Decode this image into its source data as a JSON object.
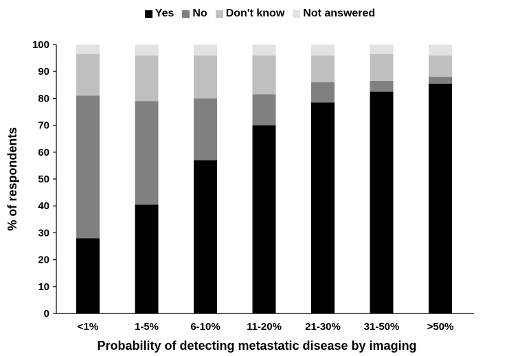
{
  "chart_data": {
    "type": "bar",
    "stacked": true,
    "title": "",
    "xlabel": "Probability of detecting metastatic disease by imaging",
    "ylabel": "% of respondents",
    "ylim": [
      0,
      100
    ],
    "yticks": [
      0,
      10,
      20,
      30,
      40,
      50,
      60,
      70,
      80,
      90,
      100
    ],
    "categories": [
      "<1%",
      "1-5%",
      "6-10%",
      "11-20%",
      "21-30%",
      "31-50%",
      ">50%"
    ],
    "legend_position": "top-center",
    "grid": false,
    "series": [
      {
        "name": "Yes",
        "color": "#000000",
        "values": [
          28,
          40.5,
          57,
          70,
          78.5,
          82.5,
          85.5
        ]
      },
      {
        "name": "No",
        "color": "#808080",
        "values": [
          53,
          38.5,
          23,
          11.5,
          7.5,
          4,
          2.5
        ]
      },
      {
        "name": "Don't know",
        "color": "#bfbfbf",
        "values": [
          15.5,
          17,
          16,
          14.5,
          10,
          10,
          8
        ]
      },
      {
        "name": "Not answered",
        "color": "#e2e2e2",
        "values": [
          3.5,
          4,
          4,
          4,
          4,
          3.5,
          4
        ]
      }
    ]
  }
}
